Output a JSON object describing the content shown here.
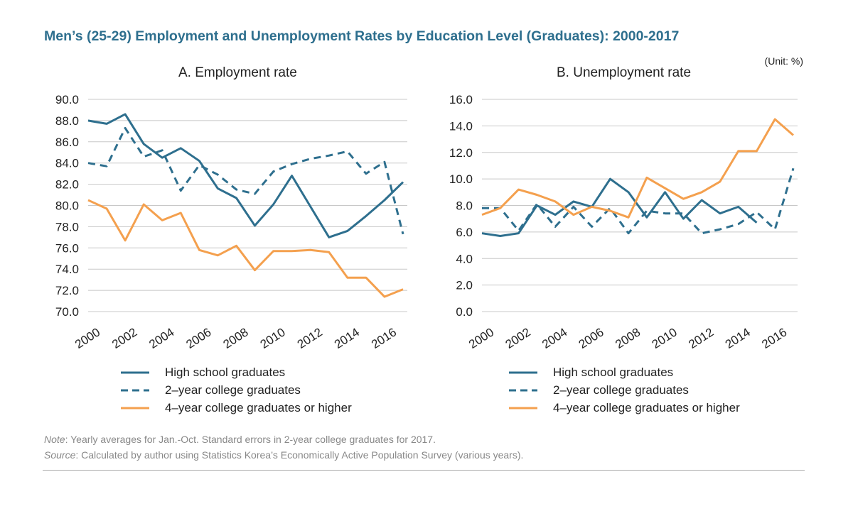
{
  "title": "Men’s (25-29) Employment and Unemployment Rates by Education Level (Graduates): 2000-2017",
  "unit": "(Unit: %)",
  "legend": [
    {
      "label": "High school graduates",
      "color": "#2e6f8e",
      "dash": "solid"
    },
    {
      "label": "2–year college graduates",
      "color": "#2e6f8e",
      "dash": "dashed"
    },
    {
      "label": "4–year college graduates or higher",
      "color": "#f4a04e",
      "dash": "solid"
    }
  ],
  "note": {
    "note_label": "Note",
    "note_text": ": Yearly averages for Jan.-Oct. Standard errors in 2-year college graduates for 2017.",
    "source_label": "Source",
    "source_text": ": Calculated by author using Statistics Korea’s Economically Active Population Survey (various years)."
  },
  "chart_data": [
    {
      "type": "line",
      "title": "A. Employment rate",
      "xlabel": "",
      "ylabel": "",
      "x": [
        2000,
        2001,
        2002,
        2003,
        2004,
        2005,
        2006,
        2007,
        2008,
        2009,
        2010,
        2011,
        2012,
        2013,
        2014,
        2015,
        2016,
        2017
      ],
      "x_tick_labels": [
        "2000",
        "2002",
        "2004",
        "2006",
        "2008",
        "2010",
        "2012",
        "2014",
        "2016"
      ],
      "ylim": [
        70,
        90
      ],
      "y_ticks": [
        "70.0",
        "72.0",
        "74.0",
        "76.0",
        "78.0",
        "80.0",
        "82.0",
        "84.0",
        "86.0",
        "88.0",
        "90.0"
      ],
      "grid": true,
      "series": [
        {
          "name": "High school graduates",
          "color": "#2e6f8e",
          "dash": "solid",
          "values": [
            88.0,
            87.7,
            88.6,
            85.8,
            84.5,
            85.4,
            84.2,
            81.6,
            80.7,
            78.1,
            80.1,
            82.8,
            79.9,
            77.0,
            77.6,
            79.0,
            80.5,
            82.2
          ]
        },
        {
          "name": "2–year college graduates",
          "color": "#2e6f8e",
          "dash": "dashed",
          "values": [
            84.0,
            83.7,
            87.3,
            84.6,
            85.2,
            81.4,
            83.8,
            82.9,
            81.5,
            81.1,
            83.2,
            83.9,
            84.4,
            84.7,
            85.1,
            83.0,
            84.1,
            77.3
          ]
        },
        {
          "name": "4–year college graduates or higher",
          "color": "#f4a04e",
          "dash": "solid",
          "values": [
            80.5,
            79.7,
            76.7,
            80.1,
            78.6,
            79.3,
            75.8,
            75.3,
            76.2,
            73.9,
            75.7,
            75.7,
            75.8,
            75.6,
            73.2,
            73.2,
            71.4,
            72.1
          ]
        }
      ]
    },
    {
      "type": "line",
      "title": "B. Unemployment rate",
      "xlabel": "",
      "ylabel": "",
      "x": [
        2000,
        2001,
        2002,
        2003,
        2004,
        2005,
        2006,
        2007,
        2008,
        2009,
        2010,
        2011,
        2012,
        2013,
        2014,
        2015,
        2016,
        2017
      ],
      "x_tick_labels": [
        "2000",
        "2002",
        "2004",
        "2006",
        "2008",
        "2010",
        "2012",
        "2014",
        "2016"
      ],
      "ylim": [
        0,
        16
      ],
      "y_ticks": [
        "0.0",
        "2.0",
        "4.0",
        "6.0",
        "8.0",
        "10.0",
        "12.0",
        "14.0",
        "16.0"
      ],
      "grid": true,
      "series": [
        {
          "name": "High school graduates",
          "color": "#2e6f8e",
          "dash": "solid",
          "values": [
            5.9,
            5.7,
            5.9,
            8.0,
            7.3,
            8.3,
            7.9,
            10.0,
            9.0,
            7.1,
            9.0,
            7.0,
            8.4,
            7.4,
            7.9,
            6.7,
            null,
            null
          ]
        },
        {
          "name": "2–year college graduates",
          "color": "#2e6f8e",
          "dash": "dashed",
          "values": [
            7.8,
            7.8,
            6.1,
            8.1,
            6.4,
            7.9,
            6.4,
            7.8,
            5.9,
            7.6,
            7.4,
            7.4,
            5.9,
            6.2,
            6.6,
            7.5,
            6.2,
            10.8
          ]
        },
        {
          "name": "4–year college graduates or higher",
          "color": "#f4a04e",
          "dash": "solid",
          "values": [
            7.3,
            7.8,
            9.2,
            8.8,
            8.3,
            7.3,
            7.9,
            7.6,
            7.1,
            10.1,
            9.3,
            8.5,
            9.0,
            9.8,
            12.1,
            12.1,
            14.5,
            13.3
          ]
        }
      ]
    }
  ]
}
